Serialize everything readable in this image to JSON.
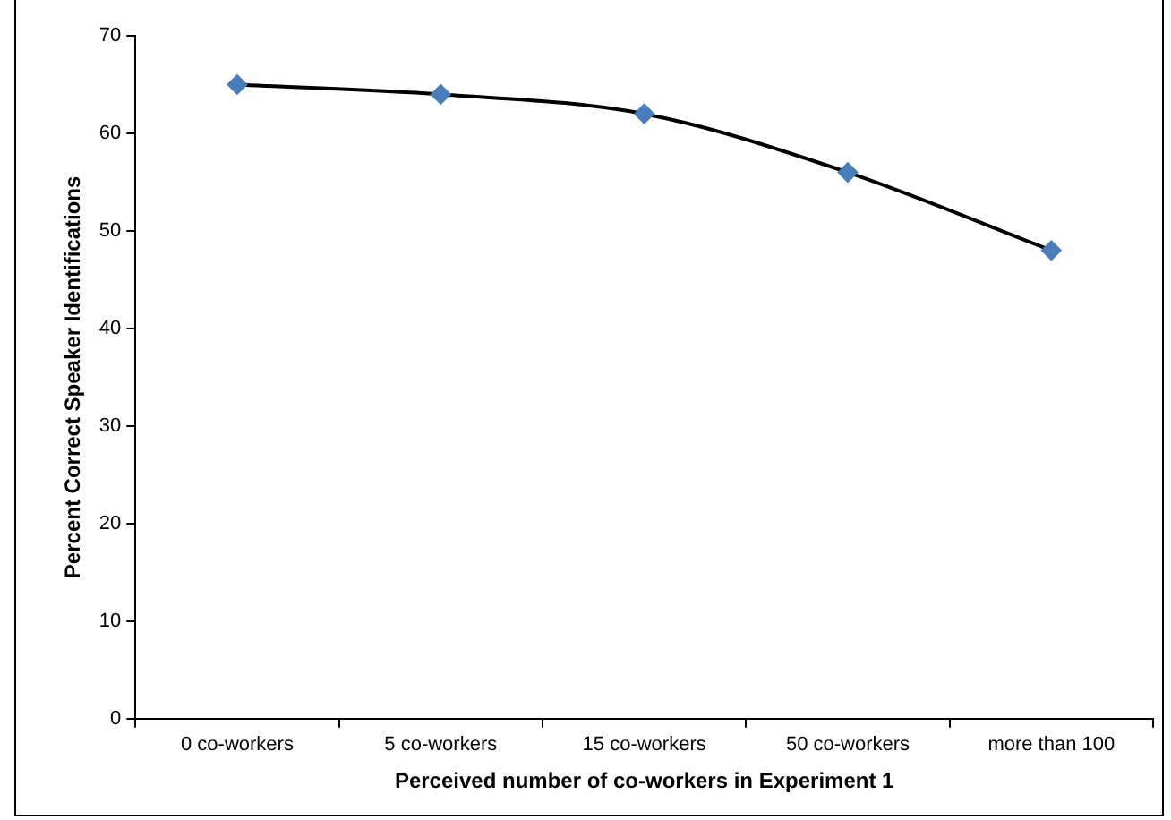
{
  "chart_data": {
    "type": "line",
    "xlabel": "Perceived number of co-workers in Experiment 1",
    "ylabel": "Percent Correct Speaker Identifications",
    "categories": [
      "0 co-workers",
      "5 co-workers",
      "15 co-workers",
      "50 co-workers",
      "more than 100"
    ],
    "series": [
      {
        "color": "#4a7ebb",
        "values": [
          65,
          64,
          62,
          56,
          48
        ]
      }
    ],
    "ylim": [
      0,
      70
    ],
    "yticks": [
      0,
      10,
      20,
      30,
      40,
      50,
      60,
      70
    ],
    "grid": false,
    "legend": false,
    "marker": "diamond",
    "line_style": "solid"
  }
}
